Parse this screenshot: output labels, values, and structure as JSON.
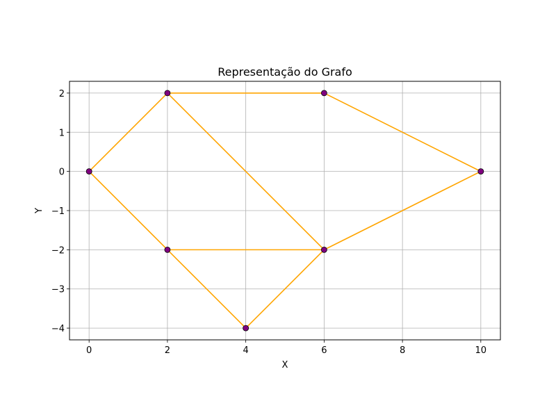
{
  "chart_data": {
    "type": "scatter",
    "title": "Representação do Grafo",
    "xlabel": "X",
    "ylabel": "Y",
    "xlim": [
      -0.5,
      10.5
    ],
    "ylim": [
      -4.3,
      2.3
    ],
    "x_ticks": [
      0,
      2,
      4,
      6,
      8,
      10
    ],
    "y_ticks": [
      -4,
      -3,
      -2,
      -1,
      0,
      1,
      2
    ],
    "x_tick_labels": [
      "0",
      "2",
      "4",
      "6",
      "8",
      "10"
    ],
    "y_tick_labels": [
      "−4",
      "−3",
      "−2",
      "−1",
      "0",
      "1",
      "2"
    ],
    "grid": true,
    "nodes": [
      {
        "label": "",
        "x": 0,
        "y": 0
      },
      {
        "label": "",
        "x": 2,
        "y": 2
      },
      {
        "label": "",
        "x": 6,
        "y": 2
      },
      {
        "label": "",
        "x": 10,
        "y": 0
      },
      {
        "label": "",
        "x": 2,
        "y": -2
      },
      {
        "label": "",
        "x": 6,
        "y": -2
      },
      {
        "label": "",
        "x": 4,
        "y": -4
      }
    ],
    "edges": [
      [
        0,
        1
      ],
      [
        0,
        4
      ],
      [
        1,
        2
      ],
      [
        1,
        5
      ],
      [
        2,
        3
      ],
      [
        3,
        5
      ],
      [
        4,
        5
      ],
      [
        4,
        6
      ],
      [
        6,
        5
      ]
    ],
    "colors": {
      "edge": "#ffa500",
      "node_fill": "#800080",
      "node_edge": "#000000",
      "grid": "#b0b0b0",
      "axes": "#000000"
    }
  }
}
